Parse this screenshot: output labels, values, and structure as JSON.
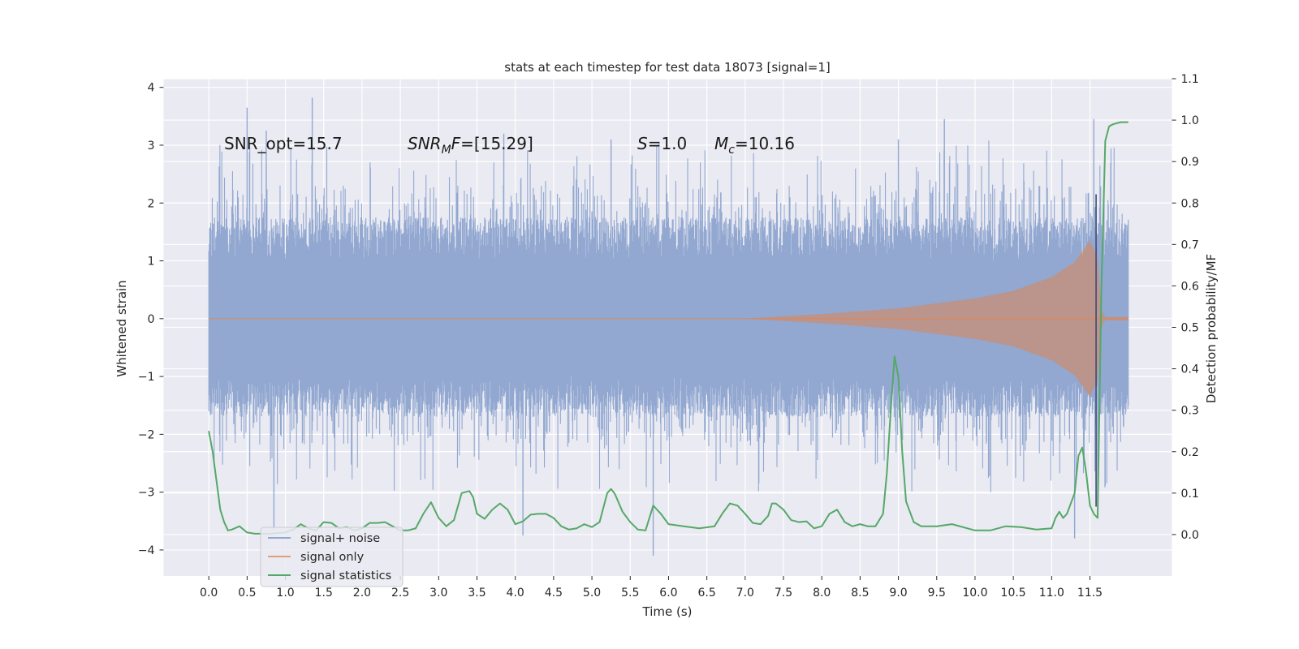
{
  "chart_data": {
    "type": "line",
    "title": "stats at each timestep for test data 18073 [signal=1]",
    "xlabel": "Time (s)",
    "ylabel_left": "Whitened strain",
    "ylabel_right": "Detection probability/MF",
    "x_ticks": [
      0.0,
      0.5,
      1.0,
      1.5,
      2.0,
      2.5,
      3.0,
      3.5,
      4.0,
      4.5,
      5.0,
      5.5,
      6.0,
      6.5,
      7.0,
      7.5,
      8.0,
      8.5,
      9.0,
      9.5,
      10.0,
      10.5,
      11.0,
      11.5
    ],
    "x_tick_labels": [
      "0.0",
      "0.5",
      "1.0",
      "1.5",
      "2.0",
      "2.5",
      "3.0",
      "3.5",
      "4.0",
      "4.5",
      "5.0",
      "5.5",
      "6.0",
      "6.5",
      "7.0",
      "7.5",
      "8.0",
      "8.5",
      "9.0",
      "9.5",
      "10.0",
      "10.5",
      "11.0",
      "11.5"
    ],
    "xlim": [
      -0.59,
      12.57
    ],
    "data_x_range": [
      0.0,
      12.0
    ],
    "ylim_left": [
      -4.45,
      4.15
    ],
    "y_ticks_left": [
      -4,
      -3,
      -2,
      -1,
      0,
      1,
      2,
      3,
      4
    ],
    "y_tick_labels_left": [
      "−4",
      "−3",
      "−2",
      "−1",
      "0",
      "1",
      "2",
      "3",
      "4"
    ],
    "ylim_right": [
      -0.1,
      1.1
    ],
    "y_ticks_right": [
      0.0,
      0.1,
      0.2,
      0.3,
      0.4,
      0.5,
      0.6,
      0.7,
      0.8,
      0.9,
      1.0,
      1.1
    ],
    "y_tick_labels_right": [
      "0.0",
      "0.1",
      "0.2",
      "0.3",
      "0.4",
      "0.5",
      "0.6",
      "0.7",
      "0.8",
      "0.9",
      "1.0",
      "1.1"
    ],
    "grid": true,
    "legend_position": "lower-left",
    "annotations": {
      "snr_opt": "SNR_opt=15.7",
      "snr_mf_name": "SNR",
      "snr_mf_sub": "M",
      "snr_mf_rest": "F",
      "snr_mf_value": "=[15.29]",
      "s_name": "S",
      "s_value": "=1.0",
      "mc_name": "M",
      "mc_sub": "c",
      "mc_value": "=10.16"
    },
    "series": [
      {
        "name": "signal+ noise",
        "color": "#92a8d1",
        "axis": "left",
        "style": "dense noise, band about ±1.5 with spikes up to 3.8 and down to −4.1",
        "peak_spikes": [
          {
            "x": 0.5,
            "y": 3.65
          },
          {
            "x": 0.75,
            "y": 3.25
          },
          {
            "x": 1.35,
            "y": 3.82
          },
          {
            "x": 3.85,
            "y": 3.2
          },
          {
            "x": 5.25,
            "y": 3.1
          },
          {
            "x": 9.0,
            "y": 3.1
          },
          {
            "x": 9.6,
            "y": 3.45
          },
          {
            "x": 11.55,
            "y": 3.45
          }
        ],
        "trough_spikes": [
          {
            "x": 0.85,
            "y": -3.65
          },
          {
            "x": 4.1,
            "y": -3.75
          },
          {
            "x": 5.8,
            "y": -4.1
          },
          {
            "x": 11.3,
            "y": -3.8
          },
          {
            "x": 11.6,
            "y": -3.25
          }
        ]
      },
      {
        "name": "signal only",
        "color": "#dd8452",
        "axis": "left",
        "style": "chirp envelope growing from 0 toward merger",
        "envelope": {
          "x": [
            0.0,
            7.0,
            8.0,
            9.0,
            10.0,
            10.5,
            11.0,
            11.3,
            11.5,
            11.6,
            11.65,
            11.7,
            12.0
          ],
          "amplitude": [
            0.0,
            0.0,
            0.08,
            0.18,
            0.35,
            0.48,
            0.72,
            0.98,
            1.35,
            1.05,
            0.15,
            0.03,
            0.03
          ]
        }
      },
      {
        "name": "signal statistics",
        "color": "#55a868",
        "axis": "right",
        "x": [
          0.0,
          0.05,
          0.1,
          0.15,
          0.2,
          0.25,
          0.3,
          0.4,
          0.5,
          0.6,
          0.8,
          1.0,
          1.1,
          1.2,
          1.3,
          1.4,
          1.5,
          1.6,
          1.7,
          1.8,
          1.9,
          2.0,
          2.1,
          2.2,
          2.3,
          2.5,
          2.6,
          2.7,
          2.8,
          2.9,
          3.0,
          3.1,
          3.2,
          3.3,
          3.4,
          3.45,
          3.5,
          3.6,
          3.7,
          3.8,
          3.9,
          4.0,
          4.1,
          4.2,
          4.3,
          4.4,
          4.5,
          4.6,
          4.7,
          4.8,
          4.9,
          5.0,
          5.1,
          5.2,
          5.25,
          5.3,
          5.4,
          5.5,
          5.6,
          5.7,
          5.8,
          5.9,
          6.0,
          6.2,
          6.4,
          6.6,
          6.7,
          6.8,
          6.9,
          7.0,
          7.1,
          7.2,
          7.3,
          7.35,
          7.4,
          7.5,
          7.6,
          7.7,
          7.8,
          7.9,
          8.0,
          8.1,
          8.2,
          8.3,
          8.4,
          8.5,
          8.6,
          8.7,
          8.8,
          8.85,
          8.9,
          8.95,
          9.0,
          9.05,
          9.1,
          9.2,
          9.3,
          9.5,
          9.7,
          10.0,
          10.2,
          10.4,
          10.6,
          10.8,
          11.0,
          11.05,
          11.1,
          11.15,
          11.2,
          11.3,
          11.35,
          11.4,
          11.45,
          11.5,
          11.55,
          11.6,
          11.65,
          11.7,
          11.75,
          11.8,
          11.9,
          12.0
        ],
        "values": [
          0.25,
          0.2,
          0.13,
          0.06,
          0.03,
          0.01,
          0.012,
          0.02,
          0.005,
          0.002,
          0.002,
          0.005,
          0.012,
          0.025,
          0.015,
          0.01,
          0.03,
          0.028,
          0.015,
          0.018,
          0.01,
          0.015,
          0.028,
          0.028,
          0.03,
          0.01,
          0.01,
          0.015,
          0.05,
          0.078,
          0.04,
          0.02,
          0.035,
          0.1,
          0.105,
          0.09,
          0.05,
          0.038,
          0.06,
          0.075,
          0.06,
          0.025,
          0.032,
          0.048,
          0.05,
          0.05,
          0.04,
          0.02,
          0.012,
          0.015,
          0.025,
          0.018,
          0.03,
          0.1,
          0.11,
          0.098,
          0.055,
          0.03,
          0.012,
          0.01,
          0.07,
          0.05,
          0.025,
          0.02,
          0.015,
          0.02,
          0.05,
          0.075,
          0.07,
          0.05,
          0.028,
          0.025,
          0.045,
          0.075,
          0.075,
          0.06,
          0.035,
          0.03,
          0.032,
          0.015,
          0.02,
          0.05,
          0.06,
          0.03,
          0.02,
          0.025,
          0.02,
          0.02,
          0.05,
          0.15,
          0.3,
          0.43,
          0.38,
          0.2,
          0.08,
          0.03,
          0.02,
          0.02,
          0.025,
          0.01,
          0.01,
          0.02,
          0.018,
          0.012,
          0.015,
          0.04,
          0.055,
          0.04,
          0.05,
          0.1,
          0.19,
          0.21,
          0.15,
          0.07,
          0.05,
          0.04,
          0.6,
          0.95,
          0.985,
          0.99,
          0.995,
          0.995
        ]
      }
    ],
    "marker_line": {
      "x": 11.58,
      "color": "#3d4a73",
      "y_from": -3.25,
      "y_to": 2.15
    }
  }
}
